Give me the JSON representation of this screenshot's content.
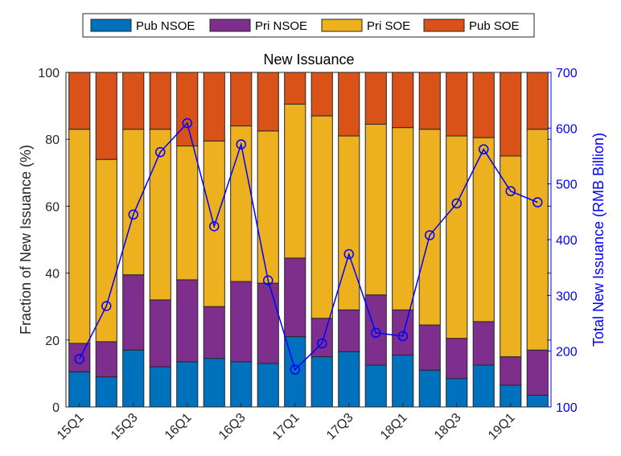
{
  "chart_data": {
    "type": "bar",
    "stacked": true,
    "title": "New Issuance",
    "categories": [
      "15Q1",
      "15Q2",
      "15Q3",
      "15Q4",
      "16Q1",
      "16Q2",
      "16Q3",
      "16Q4",
      "17Q1",
      "17Q2",
      "17Q3",
      "17Q4",
      "18Q1",
      "18Q2",
      "18Q3",
      "18Q4",
      "19Q1",
      "19Q2"
    ],
    "x_tick_labels": [
      "15Q1",
      "15Q3",
      "16Q1",
      "16Q3",
      "17Q1",
      "17Q3",
      "18Q1",
      "18Q3",
      "19Q1"
    ],
    "series": [
      {
        "name": "Pub NSOE",
        "color": "#0072BD",
        "values": [
          10.5,
          9,
          17,
          12,
          13.5,
          14.5,
          13.5,
          13,
          21,
          15,
          16.5,
          12.5,
          15.5,
          11,
          8.5,
          12.5,
          6.5,
          3.5
        ]
      },
      {
        "name": "Pri NSOE",
        "color": "#7E2F8E",
        "values": [
          8.5,
          10.5,
          22.5,
          20,
          24.5,
          15.5,
          24,
          24,
          23.5,
          11.5,
          12.5,
          21,
          13.5,
          13.5,
          12,
          13,
          8.5,
          13.5
        ]
      },
      {
        "name": "Pri SOE",
        "color": "#EDB120",
        "values": [
          64,
          54.5,
          43.5,
          51,
          40,
          49.5,
          46.5,
          45.5,
          46,
          60.5,
          52,
          51,
          54.5,
          58.5,
          60.5,
          55,
          60,
          66
        ]
      },
      {
        "name": "Pub SOE",
        "color": "#D95319",
        "values": [
          17,
          26,
          17,
          17,
          22,
          20.5,
          16,
          17.5,
          9.5,
          13,
          19,
          15.5,
          16.5,
          17,
          19,
          19.5,
          25,
          17
        ]
      }
    ],
    "line_series": {
      "axis": "right",
      "color": "#0000FF",
      "marker": "circle",
      "values": [
        186,
        281,
        445,
        557,
        609,
        424,
        571,
        327,
        167,
        214,
        374,
        233,
        227,
        408,
        465,
        562,
        487,
        467
      ]
    },
    "ylabel": "Fraction of New Issuance (%)",
    "ylim": [
      0,
      100
    ],
    "yticks": [
      0,
      20,
      40,
      60,
      80,
      100
    ],
    "y2label": "Total New Issuance (RMB Billion)",
    "y2lim": [
      100,
      700
    ],
    "y2ticks": [
      100,
      200,
      300,
      400,
      500,
      600,
      700
    ],
    "legend_position": "top",
    "grid": false
  }
}
